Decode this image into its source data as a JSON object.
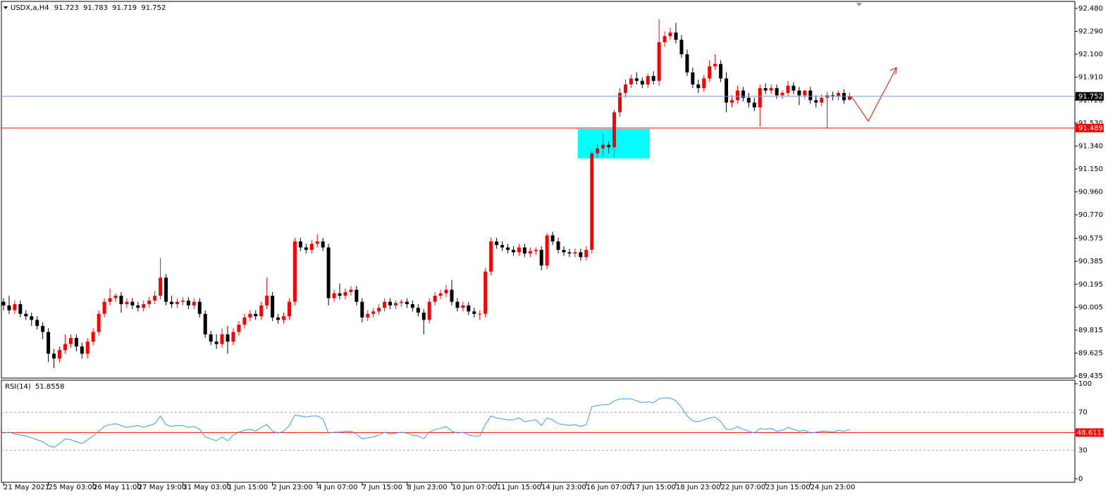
{
  "chart_data": [
    {
      "type": "candlestick",
      "title": "USDX,a,H4",
      "up_color": "#ff0000",
      "down_color": "#000000",
      "open": [
        90.05,
        90.02,
        89.98,
        90.03,
        89.95,
        89.93,
        89.9,
        89.85,
        89.8,
        89.62,
        89.58,
        89.65,
        89.7,
        89.75,
        89.68,
        89.62,
        89.72,
        89.8,
        89.95,
        90.05,
        90.08,
        90.1,
        90.03,
        90.05,
        90.02,
        90.0,
        90.03,
        90.06,
        90.1,
        90.25,
        90.05,
        90.03,
        90.05,
        90.06,
        90.02,
        90.05,
        89.95,
        89.78,
        89.72,
        89.7,
        89.78,
        89.72,
        89.8,
        89.86,
        89.92,
        89.95,
        89.93,
        90.02,
        90.1,
        89.92,
        89.9,
        89.93,
        90.05,
        90.55,
        90.5,
        90.48,
        90.53,
        90.55,
        90.5,
        90.08,
        90.12,
        90.1,
        90.13,
        90.15,
        90.05,
        89.92,
        89.95,
        89.97,
        90.0,
        90.05,
        90.02,
        90.04,
        90.05,
        90.03,
        90.0,
        89.96,
        89.9,
        90.05,
        90.1,
        90.12,
        90.15,
        90.05,
        90.0,
        90.02,
        89.97,
        89.95,
        89.95,
        90.3,
        90.55,
        90.52,
        90.5,
        90.48,
        90.46,
        90.5,
        90.45,
        90.47,
        90.48,
        90.35,
        90.6,
        90.55,
        90.48,
        90.46,
        90.45,
        90.46,
        90.42,
        90.48,
        91.28,
        91.32,
        91.35,
        91.33,
        91.62,
        91.78,
        91.85,
        91.9,
        91.88,
        91.85,
        91.92,
        91.88,
        92.2,
        92.25,
        92.28,
        92.22,
        92.1,
        91.95,
        91.85,
        91.82,
        91.9,
        92.0,
        92.02,
        91.9,
        91.7,
        91.72,
        91.8,
        91.74,
        91.7,
        91.66,
        91.82,
        91.8,
        91.82,
        91.76,
        91.78,
        91.84,
        91.8,
        91.76,
        91.8,
        91.72,
        91.7,
        91.74,
        91.76,
        91.75,
        91.78,
        91.723
      ],
      "high": [
        90.08,
        90.1,
        90.06,
        90.06,
        89.98,
        89.96,
        89.93,
        89.88,
        89.83,
        89.66,
        89.68,
        89.78,
        89.78,
        89.78,
        89.71,
        89.75,
        89.83,
        89.98,
        90.08,
        90.16,
        90.12,
        90.13,
        90.08,
        90.08,
        90.05,
        90.06,
        90.09,
        90.14,
        90.41,
        90.28,
        90.1,
        90.08,
        90.09,
        90.09,
        90.08,
        90.08,
        89.98,
        89.81,
        89.78,
        89.83,
        89.85,
        89.83,
        89.89,
        89.95,
        89.98,
        89.98,
        90.05,
        90.25,
        90.13,
        89.95,
        89.96,
        90.08,
        90.58,
        90.58,
        90.53,
        90.56,
        90.61,
        90.58,
        90.53,
        90.15,
        90.2,
        90.16,
        90.18,
        90.18,
        90.08,
        89.98,
        90.0,
        90.03,
        90.08,
        90.08,
        90.06,
        90.07,
        90.08,
        90.06,
        90.03,
        89.99,
        90.08,
        90.13,
        90.15,
        90.19,
        90.23,
        90.08,
        90.05,
        90.05,
        90.0,
        89.98,
        90.33,
        90.58,
        90.58,
        90.55,
        90.53,
        90.51,
        90.53,
        90.53,
        90.5,
        90.5,
        90.51,
        90.62,
        90.63,
        90.58,
        90.51,
        90.49,
        90.49,
        90.49,
        90.51,
        91.3,
        91.36,
        91.44,
        91.38,
        91.64,
        91.82,
        91.89,
        91.93,
        91.95,
        91.91,
        91.94,
        91.96,
        92.39,
        92.29,
        92.32,
        92.36,
        92.26,
        92.14,
        91.99,
        91.89,
        91.93,
        92.05,
        92.1,
        92.05,
        91.95,
        91.76,
        91.84,
        91.83,
        91.78,
        91.74,
        91.85,
        91.86,
        91.85,
        91.85,
        91.8,
        91.88,
        91.87,
        91.83,
        91.8,
        91.83,
        91.76,
        91.77,
        91.79,
        91.79,
        91.8,
        91.81,
        91.783
      ],
      "low": [
        89.98,
        89.95,
        89.95,
        89.92,
        89.9,
        89.85,
        89.82,
        89.74,
        89.55,
        89.5,
        89.55,
        89.62,
        89.67,
        89.64,
        89.58,
        89.58,
        89.69,
        89.77,
        89.92,
        90.02,
        90.05,
        89.96,
        90.0,
        89.99,
        89.97,
        89.97,
        90.0,
        90.03,
        90.07,
        90.02,
        90.0,
        90.0,
        90.02,
        89.99,
        89.99,
        89.92,
        89.75,
        89.69,
        89.66,
        89.67,
        89.62,
        89.69,
        89.77,
        89.83,
        89.89,
        89.9,
        89.9,
        89.99,
        89.89,
        89.87,
        89.87,
        89.9,
        90.02,
        90.47,
        90.45,
        90.45,
        90.5,
        90.47,
        90.02,
        90.05,
        90.07,
        90.07,
        90.1,
        90.02,
        89.88,
        89.89,
        89.92,
        89.94,
        89.97,
        89.99,
        89.99,
        90.01,
        90.0,
        89.97,
        89.93,
        89.78,
        89.87,
        90.02,
        90.07,
        90.09,
        90.02,
        89.97,
        89.97,
        89.94,
        89.92,
        89.9,
        89.92,
        90.27,
        90.49,
        90.47,
        90.45,
        90.43,
        90.43,
        90.42,
        90.42,
        90.44,
        90.31,
        90.32,
        90.52,
        90.45,
        90.43,
        90.42,
        90.42,
        90.39,
        90.39,
        90.45,
        91.24,
        91.26,
        91.28,
        91.25,
        91.58,
        91.74,
        91.82,
        91.85,
        91.82,
        91.82,
        91.85,
        91.84,
        92.16,
        92.22,
        92.19,
        92.07,
        91.92,
        91.82,
        91.78,
        91.79,
        91.87,
        91.97,
        91.87,
        91.62,
        91.66,
        91.69,
        91.71,
        91.66,
        91.63,
        91.5,
        91.77,
        91.77,
        91.73,
        91.73,
        91.75,
        91.77,
        91.68,
        91.73,
        91.69,
        91.66,
        91.67,
        91.49,
        91.72,
        91.72,
        91.69,
        91.719
      ],
      "close": [
        90.02,
        89.98,
        90.03,
        89.95,
        89.93,
        89.9,
        89.85,
        89.8,
        89.62,
        89.58,
        89.65,
        89.7,
        89.75,
        89.68,
        89.62,
        89.72,
        89.8,
        89.95,
        90.05,
        90.08,
        90.1,
        90.03,
        90.05,
        90.02,
        90.0,
        90.03,
        90.06,
        90.1,
        90.25,
        90.05,
        90.03,
        90.05,
        90.06,
        90.02,
        90.05,
        89.95,
        89.78,
        89.72,
        89.7,
        89.78,
        89.72,
        89.8,
        89.86,
        89.92,
        89.95,
        89.93,
        90.02,
        90.1,
        89.92,
        89.9,
        89.93,
        90.05,
        90.55,
        90.5,
        90.48,
        90.53,
        90.55,
        90.5,
        90.08,
        90.12,
        90.1,
        90.13,
        90.15,
        90.05,
        89.92,
        89.95,
        89.97,
        90.0,
        90.05,
        90.02,
        90.04,
        90.05,
        90.03,
        90.0,
        89.96,
        89.9,
        90.05,
        90.1,
        90.12,
        90.15,
        90.05,
        90.0,
        90.02,
        89.97,
        89.95,
        89.95,
        90.3,
        90.55,
        90.52,
        90.5,
        90.48,
        90.46,
        90.5,
        90.45,
        90.47,
        90.48,
        90.35,
        90.6,
        90.55,
        90.48,
        90.46,
        90.45,
        90.46,
        90.42,
        90.48,
        91.28,
        91.32,
        91.35,
        91.33,
        91.62,
        91.78,
        91.85,
        91.9,
        91.88,
        91.85,
        91.92,
        91.88,
        92.2,
        92.25,
        92.28,
        92.22,
        92.1,
        91.95,
        91.85,
        91.82,
        91.9,
        92.0,
        92.02,
        91.9,
        91.7,
        91.72,
        91.8,
        91.74,
        91.7,
        91.66,
        91.82,
        91.8,
        91.82,
        91.76,
        91.78,
        91.84,
        91.8,
        91.76,
        91.8,
        91.72,
        91.7,
        91.74,
        91.76,
        91.75,
        91.78,
        91.72,
        91.752
      ],
      "ylim": [
        89.418,
        92.538
      ],
      "yticks": [
        {
          "value": 92.48,
          "label": "92.480"
        },
        {
          "value": 92.29,
          "label": "92.290"
        },
        {
          "value": 92.1,
          "label": "92.100"
        },
        {
          "value": 91.91,
          "label": "91.910"
        },
        {
          "value": 91.72,
          "label": "91.720"
        },
        {
          "value": 91.53,
          "label": "91.530"
        },
        {
          "value": 91.34,
          "label": "91.340"
        },
        {
          "value": 91.15,
          "label": "91.150"
        },
        {
          "value": 90.96,
          "label": "90.960"
        },
        {
          "value": 90.77,
          "label": "90.770"
        },
        90.575,
        90.385,
        90.195,
        90.005,
        89.815,
        89.625,
        89.435
      ],
      "xticks": [
        {
          "value": 0,
          "label": "21 May 2021"
        },
        {
          "value": 8,
          "label": "25 May 03:00"
        },
        {
          "value": 16,
          "label": "26 May 11:00"
        },
        {
          "value": 24,
          "label": "27 May 19:00"
        },
        {
          "value": 32,
          "label": "31 May 03:00"
        },
        {
          "value": 40,
          "label": "1 Jun 15:00"
        },
        {
          "value": 48,
          "label": "2 Jun 23:00"
        },
        {
          "value": 56,
          "label": "4 Jun 07:00"
        },
        {
          "value": 64,
          "label": "7 Jun 15:00"
        },
        {
          "value": 72,
          "label": "8 Jun 23:00"
        },
        {
          "value": 80,
          "label": "10 Jun 07:00"
        },
        {
          "value": 88,
          "label": "11 Jun 15:00"
        },
        {
          "value": 96,
          "label": "14 Jun 23:00"
        },
        {
          "value": 104,
          "label": "16 Jun 07:00"
        },
        {
          "value": 112,
          "label": "17 Jun 15:00"
        },
        {
          "value": 120,
          "label": "18 Jun 23:00"
        },
        {
          "value": 128,
          "label": "22 Jun 07:00"
        },
        {
          "value": 136,
          "label": "23 Jun 15:00"
        },
        {
          "value": 144,
          "label": "24 Jun 23:00"
        }
      ],
      "price_line_color": "#7f9cc9",
      "level": {
        "value": 91.489,
        "color": "#ff0000"
      }
    },
    {
      "type": "line",
      "title": "RSI(14)",
      "color": "#3d9be9",
      "values": [
        48,
        49,
        47,
        46,
        45,
        43,
        41,
        39,
        35,
        33,
        37,
        42,
        41,
        39,
        37,
        41,
        45,
        50,
        55,
        57,
        58,
        56,
        54,
        55,
        56,
        54,
        56,
        58,
        66,
        57,
        55,
        56,
        56,
        54,
        55,
        52,
        44,
        42,
        40,
        44,
        40,
        46,
        49,
        51,
        52,
        50,
        54,
        57,
        50,
        48,
        50,
        56,
        67,
        66,
        65,
        66,
        66,
        63,
        48,
        49,
        49,
        50,
        50,
        47,
        42,
        43,
        44,
        46,
        49,
        47,
        48,
        49,
        48,
        46,
        45,
        42,
        49,
        52,
        53,
        55,
        50,
        48,
        49,
        46,
        45,
        45,
        57,
        66,
        64,
        63,
        62,
        62,
        64,
        60,
        61,
        62,
        56,
        64,
        62,
        58,
        57,
        56,
        57,
        55,
        57,
        76,
        77,
        78,
        78,
        82,
        84,
        84,
        84,
        82,
        80,
        81,
        80,
        84,
        85,
        85,
        82,
        75,
        66,
        61,
        60,
        62,
        64,
        65,
        60,
        52,
        52,
        55,
        52,
        50,
        48,
        53,
        52,
        53,
        50,
        51,
        54,
        52,
        50,
        51,
        48,
        49,
        50,
        50,
        49,
        51,
        50,
        51.8558
      ],
      "ylim": [
        0,
        100
      ],
      "yticks": [
        100,
        70,
        30,
        0
      ],
      "level": {
        "value": 48.6111,
        "color": "#ff0000"
      }
    }
  ]
}
